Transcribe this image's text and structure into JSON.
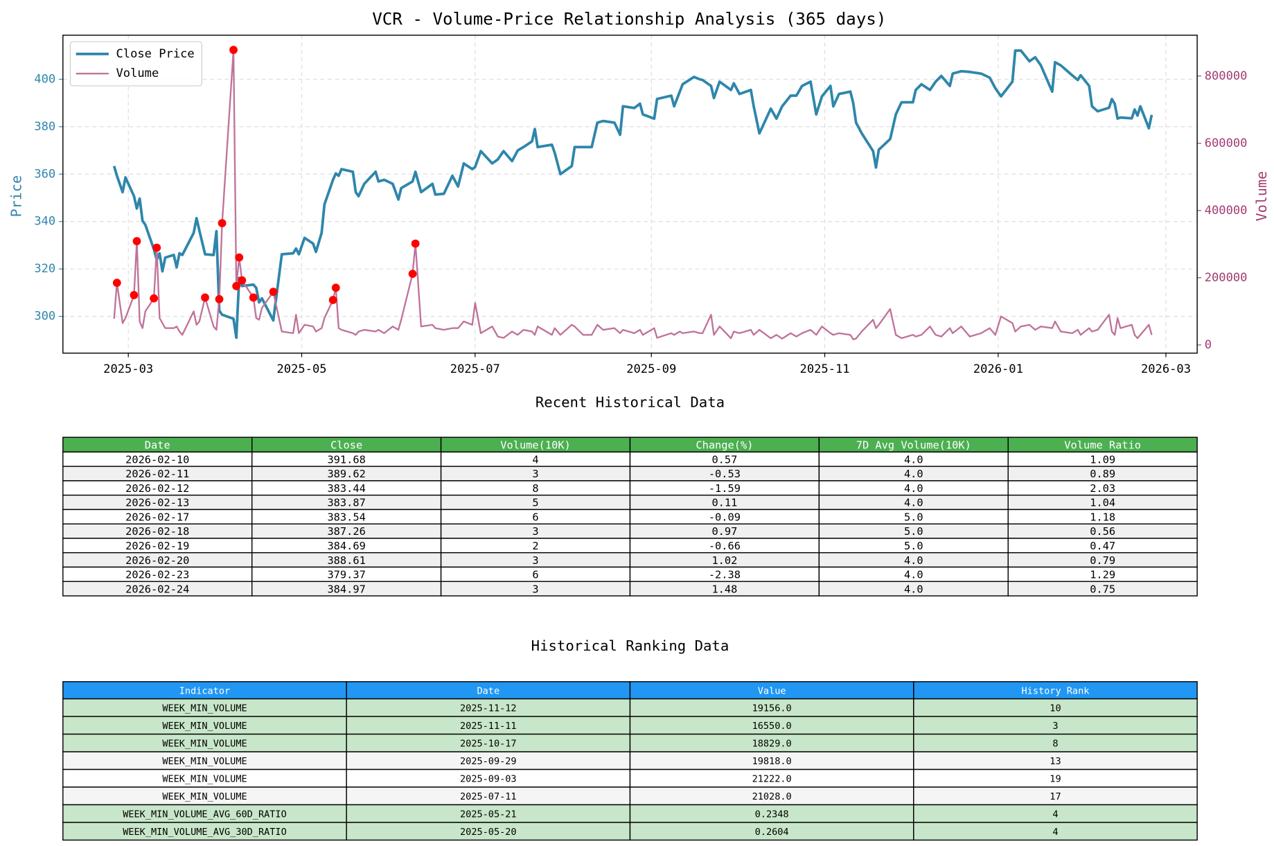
{
  "chart_data": {
    "type": "line",
    "title": "VCR - Volume-Price Relationship Analysis (365 days)",
    "ylabel": "Price",
    "y2label": "Volume",
    "legend": "upper left",
    "grid": true,
    "xlim": [
      "2025-02-06",
      "2026-03-12"
    ],
    "xticks": [
      {
        "value": "2025-03-01",
        "label": "2025-03"
      },
      {
        "value": "2025-05-01",
        "label": "2025-05"
      },
      {
        "value": "2025-07-01",
        "label": "2025-07"
      },
      {
        "value": "2025-09-01",
        "label": "2025-09"
      },
      {
        "value": "2025-11-01",
        "label": "2025-11"
      },
      {
        "value": "2026-01-01",
        "label": "2026-01"
      },
      {
        "value": "2026-03-01",
        "label": "2026-03"
      }
    ],
    "ylim": [
      284.5,
      418.6
    ],
    "yticks": [
      300,
      320,
      340,
      360,
      380,
      400
    ],
    "ycolor": "#2e86ab",
    "y2lim": [
      -24300,
      921600
    ],
    "y2ticks": [
      0,
      200000,
      400000,
      600000,
      800000
    ],
    "y2color": "#a23b72",
    "x": [
      "2025-02-24",
      "2025-02-25",
      "2025-02-27",
      "2025-02-28",
      "2025-03-03",
      "2025-03-04",
      "2025-03-05",
      "2025-03-06",
      "2025-03-07",
      "2025-03-10",
      "2025-03-11",
      "2025-03-12",
      "2025-03-13",
      "2025-03-14",
      "2025-03-17",
      "2025-03-18",
      "2025-03-19",
      "2025-03-20",
      "2025-03-24",
      "2025-03-25",
      "2025-03-26",
      "2025-03-28",
      "2025-03-31",
      "2025-04-01",
      "2025-04-02",
      "2025-04-03",
      "2025-04-07",
      "2025-04-08",
      "2025-04-09",
      "2025-04-10",
      "2025-04-14",
      "2025-04-15",
      "2025-04-16",
      "2025-04-17",
      "2025-04-21",
      "2025-04-24",
      "2025-04-28",
      "2025-04-29",
      "2025-04-30",
      "2025-05-02",
      "2025-05-05",
      "2025-05-06",
      "2025-05-08",
      "2025-05-09",
      "2025-05-12",
      "2025-05-13",
      "2025-05-14",
      "2025-05-15",
      "2025-05-19",
      "2025-05-20",
      "2025-05-21",
      "2025-05-23",
      "2025-05-27",
      "2025-05-28",
      "2025-05-30",
      "2025-06-02",
      "2025-06-04",
      "2025-06-05",
      "2025-06-09",
      "2025-06-10",
      "2025-06-12",
      "2025-06-16",
      "2025-06-17",
      "2025-06-20",
      "2025-06-23",
      "2025-06-25",
      "2025-06-27",
      "2025-06-30",
      "2025-07-01",
      "2025-07-03",
      "2025-07-07",
      "2025-07-09",
      "2025-07-11",
      "2025-07-14",
      "2025-07-16",
      "2025-07-18",
      "2025-07-21",
      "2025-07-22",
      "2025-07-23",
      "2025-07-28",
      "2025-07-29",
      "2025-07-31",
      "2025-08-04",
      "2025-08-05",
      "2025-08-08",
      "2025-08-11",
      "2025-08-13",
      "2025-08-15",
      "2025-08-19",
      "2025-08-21",
      "2025-08-22",
      "2025-08-26",
      "2025-08-28",
      "2025-08-29",
      "2025-09-02",
      "2025-09-03",
      "2025-09-08",
      "2025-09-09",
      "2025-09-11",
      "2025-09-12",
      "2025-09-16",
      "2025-09-18",
      "2025-09-19",
      "2025-09-22",
      "2025-09-23",
      "2025-09-25",
      "2025-09-29",
      "2025-09-30",
      "2025-10-02",
      "2025-10-06",
      "2025-10-07",
      "2025-10-09",
      "2025-10-13",
      "2025-10-15",
      "2025-10-17",
      "2025-10-20",
      "2025-10-22",
      "2025-10-24",
      "2025-10-27",
      "2025-10-29",
      "2025-10-31",
      "2025-11-03",
      "2025-11-04",
      "2025-11-06",
      "2025-11-10",
      "2025-11-11",
      "2025-11-12",
      "2025-11-14",
      "2025-11-18",
      "2025-11-19",
      "2025-11-20",
      "2025-11-24",
      "2025-11-26",
      "2025-11-28",
      "2025-12-02",
      "2025-12-03",
      "2025-12-05",
      "2025-12-08",
      "2025-12-10",
      "2025-12-12",
      "2025-12-15",
      "2025-12-16",
      "2025-12-19",
      "2025-12-22",
      "2025-12-26",
      "2025-12-29",
      "2025-12-31",
      "2026-01-02",
      "2026-01-06",
      "2026-01-07",
      "2026-01-09",
      "2026-01-12",
      "2026-01-14",
      "2026-01-16",
      "2026-01-20",
      "2026-01-21",
      "2026-01-23",
      "2026-01-27",
      "2026-01-29",
      "2026-01-30",
      "2026-02-02",
      "2026-02-03",
      "2026-02-05",
      "2026-02-09",
      "2026-02-10",
      "2026-02-11",
      "2026-02-12",
      "2026-02-13",
      "2026-02-17",
      "2026-02-18",
      "2026-02-19",
      "2026-02-20",
      "2026-02-23",
      "2026-02-24"
    ],
    "series": [
      {
        "name": "Close Price",
        "color": "#2e86ab",
        "axis": "y",
        "linewidth": 3.2,
        "values": [
          363.4,
          359.3,
          352.4,
          358.6,
          350.7,
          345.5,
          349.7,
          340.3,
          338.6,
          328.3,
          323.8,
          326.6,
          319.0,
          324.8,
          325.9,
          320.7,
          326.6,
          325.9,
          335.2,
          341.4,
          336.2,
          326.2,
          325.9,
          335.9,
          302.4,
          300.7,
          299.0,
          291.0,
          316.2,
          312.8,
          313.4,
          312.0,
          305.9,
          307.6,
          298.3,
          326.2,
          326.6,
          328.6,
          326.2,
          333.1,
          330.7,
          327.2,
          335.2,
          347.2,
          357.6,
          360.3,
          359.3,
          362.1,
          361.0,
          352.4,
          350.7,
          355.9,
          361.0,
          356.9,
          357.6,
          355.9,
          349.3,
          354.1,
          356.9,
          361.0,
          352.4,
          355.9,
          351.4,
          351.7,
          359.3,
          354.8,
          364.5,
          362.1,
          363.0,
          369.7,
          364.5,
          366.2,
          369.7,
          365.5,
          370.0,
          371.4,
          373.8,
          379.0,
          371.4,
          372.4,
          369.0,
          360.0,
          363.4,
          371.4,
          371.4,
          371.4,
          381.7,
          382.4,
          381.7,
          376.6,
          388.6,
          387.9,
          389.7,
          385.2,
          383.4,
          391.7,
          393.1,
          388.6,
          394.8,
          397.9,
          401.0,
          400.0,
          399.7,
          397.2,
          392.1,
          399.0,
          395.5,
          398.3,
          393.8,
          395.5,
          388.6,
          377.2,
          387.6,
          383.4,
          388.6,
          393.1,
          393.1,
          397.2,
          399.0,
          385.2,
          392.8,
          397.2,
          388.6,
          393.8,
          394.8,
          390.0,
          381.7,
          377.2,
          369.7,
          362.8,
          370.3,
          374.8,
          385.2,
          390.3,
          390.3,
          395.5,
          397.9,
          395.5,
          399.0,
          401.4,
          397.2,
          402.4,
          403.4,
          403.1,
          402.4,
          400.7,
          396.2,
          392.8,
          399.0,
          412.1,
          412.1,
          407.6,
          409.3,
          405.9,
          394.8,
          407.2,
          405.9,
          401.7,
          399.7,
          401.7,
          397.2,
          388.6,
          386.5,
          388.0,
          391.68,
          389.62,
          383.44,
          383.87,
          383.54,
          387.26,
          384.69,
          388.61,
          379.37,
          384.97
        ]
      },
      {
        "name": "Volume",
        "color": "#c0739a",
        "axis": "y2",
        "linewidth": 2,
        "marker_color": "#ff0000",
        "markers": [
          1,
          4,
          5,
          9,
          10,
          21,
          24,
          25,
          26,
          27,
          28,
          29,
          30,
          34,
          44,
          45,
          58,
          59
        ],
        "values": [
          78000,
          184800,
          65000,
          80000,
          148300,
          308800,
          70000,
          50000,
          100000,
          138600,
          289400,
          80000,
          65000,
          50000,
          50000,
          55000,
          40000,
          30000,
          100000,
          60000,
          70000,
          141000,
          55000,
          45000,
          136200,
          362300,
          877800,
          175100,
          260200,
          192100,
          141000,
          80000,
          75000,
          110000,
          158100,
          40000,
          35000,
          90000,
          35000,
          60000,
          55000,
          40000,
          50000,
          80000,
          133700,
          170200,
          50000,
          45000,
          35000,
          30000,
          40000,
          45000,
          40000,
          45000,
          35000,
          55000,
          45000,
          75000,
          211500,
          301500,
          55000,
          60000,
          50000,
          45000,
          50000,
          50000,
          70000,
          60000,
          125000,
          35000,
          55000,
          25000,
          21028,
          40000,
          30000,
          45000,
          40000,
          30000,
          55000,
          30000,
          50000,
          30000,
          60000,
          55000,
          30000,
          30000,
          60000,
          45000,
          50000,
          35000,
          45000,
          35000,
          45000,
          30000,
          50000,
          21222,
          35000,
          30000,
          40000,
          35000,
          40000,
          35000,
          35000,
          90000,
          30000,
          55000,
          19818,
          40000,
          35000,
          45000,
          30000,
          45000,
          20000,
          30000,
          18829,
          35000,
          25000,
          35000,
          45000,
          30000,
          55000,
          35000,
          30000,
          35000,
          30000,
          16550,
          19156,
          40000,
          75000,
          50000,
          60000,
          107000,
          30000,
          20000,
          30000,
          25000,
          30000,
          55000,
          30000,
          25000,
          50000,
          35000,
          55000,
          25000,
          35000,
          50000,
          30000,
          85000,
          65000,
          40000,
          55000,
          60000,
          45000,
          55000,
          50000,
          70000,
          40000,
          35000,
          45000,
          30000,
          50000,
          40000,
          45000,
          90000,
          40000,
          30000,
          80000,
          50000,
          60000,
          30000,
          20000,
          30000,
          60000,
          30000
        ]
      }
    ]
  },
  "recent_table": {
    "title": "Recent Historical Data",
    "header_color": "#4caf50",
    "columns": [
      "Date",
      "Close",
      "Volume(10K)",
      "Change(%)",
      "7D Avg Volume(10K)",
      "Volume Ratio"
    ],
    "row_colors": [
      "#ffffff",
      "#f0f0f0",
      "#ffffff",
      "#f0f0f0",
      "#ffffff",
      "#f0f0f0",
      "#ffffff",
      "#f0f0f0",
      "#ffffff",
      "#f0f0f0"
    ],
    "rows": [
      [
        "2026-02-10",
        "391.68",
        "4",
        "0.57",
        "4.0",
        "1.09"
      ],
      [
        "2026-02-11",
        "389.62",
        "3",
        "-0.53",
        "4.0",
        "0.89"
      ],
      [
        "2026-02-12",
        "383.44",
        "8",
        "-1.59",
        "4.0",
        "2.03"
      ],
      [
        "2026-02-13",
        "383.87",
        "5",
        "0.11",
        "4.0",
        "1.04"
      ],
      [
        "2026-02-17",
        "383.54",
        "6",
        "-0.09",
        "5.0",
        "1.18"
      ],
      [
        "2026-02-18",
        "387.26",
        "3",
        "0.97",
        "5.0",
        "0.56"
      ],
      [
        "2026-02-19",
        "384.69",
        "2",
        "-0.66",
        "5.0",
        "0.47"
      ],
      [
        "2026-02-20",
        "388.61",
        "3",
        "1.02",
        "4.0",
        "0.79"
      ],
      [
        "2026-02-23",
        "379.37",
        "6",
        "-2.38",
        "4.0",
        "1.29"
      ],
      [
        "2026-02-24",
        "384.97",
        "3",
        "1.48",
        "4.0",
        "0.75"
      ]
    ]
  },
  "ranking_table": {
    "title": "Historical Ranking Data",
    "header_color": "#2196f3",
    "columns": [
      "Indicator",
      "Date",
      "Value",
      "History Rank"
    ],
    "row_colors": [
      "#c8e6c9",
      "#c8e6c9",
      "#c8e6c9",
      "#f5f5f5",
      "#ffffff",
      "#f5f5f5",
      "#c8e6c9",
      "#c8e6c9"
    ],
    "rows": [
      [
        "WEEK_MIN_VOLUME",
        "2025-11-12",
        "19156.0",
        "10"
      ],
      [
        "WEEK_MIN_VOLUME",
        "2025-11-11",
        "16550.0",
        "3"
      ],
      [
        "WEEK_MIN_VOLUME",
        "2025-10-17",
        "18829.0",
        "8"
      ],
      [
        "WEEK_MIN_VOLUME",
        "2025-09-29",
        "19818.0",
        "13"
      ],
      [
        "WEEK_MIN_VOLUME",
        "2025-09-03",
        "21222.0",
        "19"
      ],
      [
        "WEEK_MIN_VOLUME",
        "2025-07-11",
        "21028.0",
        "17"
      ],
      [
        "WEEK_MIN_VOLUME_AVG_60D_RATIO",
        "2025-05-21",
        "0.2348",
        "4"
      ],
      [
        "WEEK_MIN_VOLUME_AVG_30D_RATIO",
        "2025-05-20",
        "0.2604",
        "4"
      ]
    ]
  }
}
